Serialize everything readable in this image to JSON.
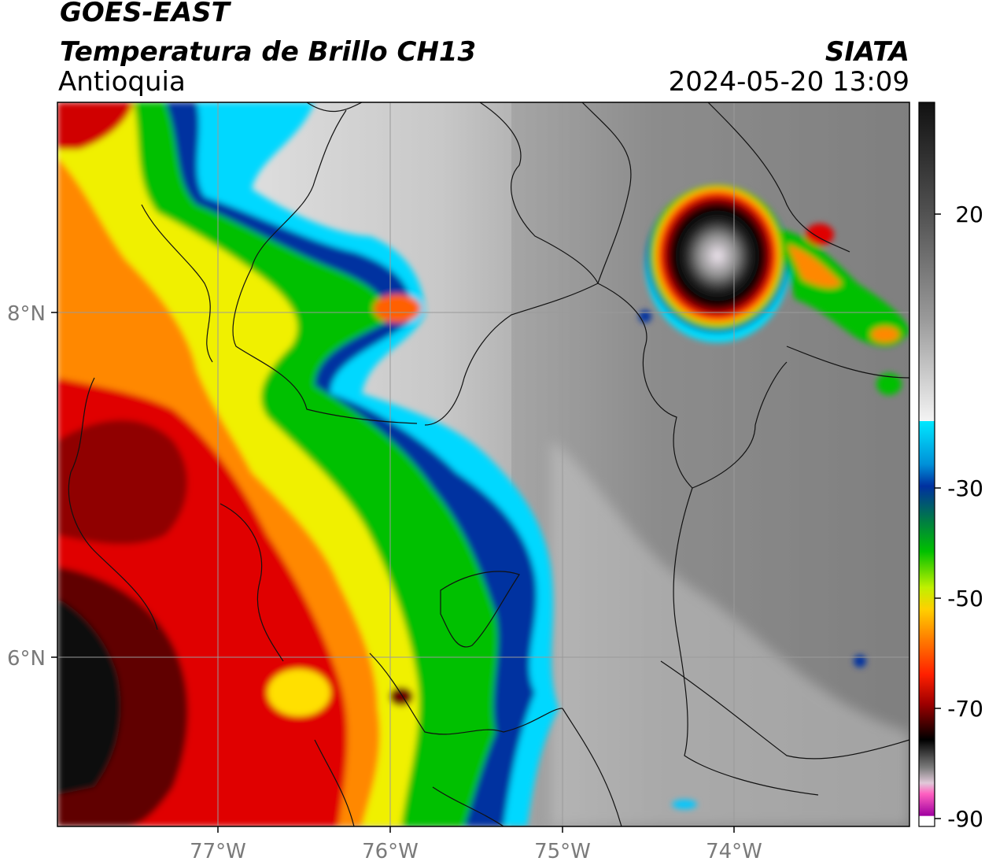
{
  "header": {
    "title_line1": "GOES-EAST",
    "title_line2": "Temperatura de Brillo CH13",
    "region": "Antioquia",
    "organization": "SIATA",
    "timestamp": "2024-05-20 13:09"
  },
  "map": {
    "lon_ticks": [
      "77°W",
      "76°W",
      "75°W",
      "74°W"
    ],
    "lat_ticks": [
      "8°N",
      "6°N"
    ]
  },
  "colorbar": {
    "tick_labels": [
      "20",
      "-30",
      "-50",
      "-70",
      "-90"
    ],
    "palette": {
      "warm_gray_dark": "#1a1a1a",
      "warm_gray_light": "#f2f2f2",
      "cyan": "#00e0ff",
      "blue": "#0030a0",
      "green": "#00c000",
      "yellow": "#f0f000",
      "orange": "#ff8800",
      "red": "#e00000",
      "dark_red": "#600000",
      "black": "#000000",
      "pink": "#ff60c0",
      "purple": "#a000a0"
    }
  }
}
